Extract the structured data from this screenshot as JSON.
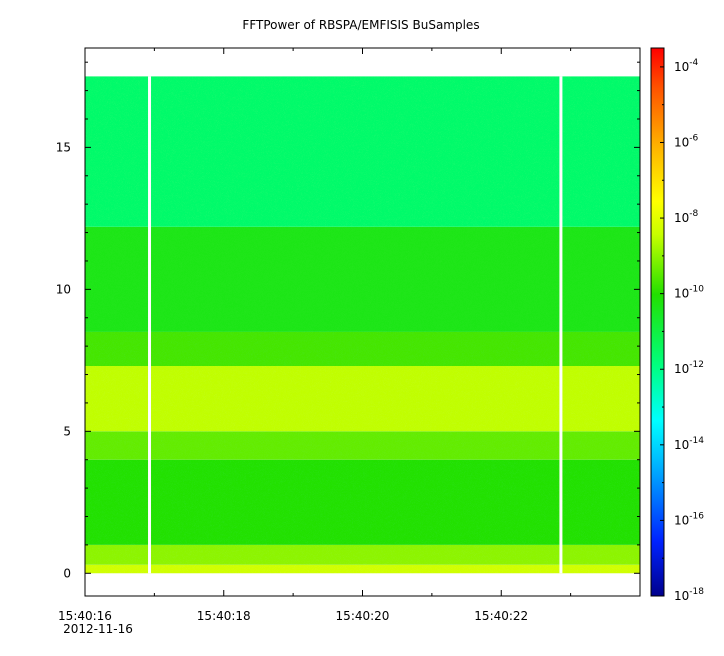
{
  "chart_data": {
    "type": "heatmap",
    "title": "FFTPower of RBSPA/EMFISIS  BuSamples",
    "xlabel": "",
    "ylabel": "",
    "x_axis": {
      "date": "2012-11-16",
      "range_seconds": [
        "15:40:16",
        "15:40:24"
      ],
      "tick_labels": [
        "15:40:16",
        "15:40:18",
        "15:40:20",
        "15:40:22"
      ],
      "tick_values": [
        "15:40:16",
        "15:40:18",
        "15:40:20",
        "15:40:22"
      ]
    },
    "y_axis": {
      "range": [
        -0.8,
        18.5
      ],
      "tick_labels": [
        "0",
        "5",
        "10",
        "15"
      ],
      "tick_values": [
        0,
        5,
        10,
        15
      ]
    },
    "colorbar": {
      "scale": "log",
      "range_exponent": [
        -18,
        -3.5
      ],
      "tick_base": "10",
      "tick_exponents": [
        "-18",
        "-16",
        "-14",
        "-12",
        "-10",
        "-8",
        "-6",
        "-4"
      ],
      "colormap": "rainbow"
    },
    "data_extent": {
      "time_start": "15:40:16",
      "time_end": "15:40:24",
      "freq_min": 0,
      "freq_max": 17.5
    },
    "gaps": [
      {
        "time": "15:40:16.93"
      },
      {
        "time": "15:40:22.86"
      }
    ],
    "bands": [
      {
        "freq_from": 0,
        "freq_to": 0.3,
        "log10_power": -8.3
      },
      {
        "freq_from": 0.3,
        "freq_to": 1.0,
        "log10_power": -9.0
      },
      {
        "freq_from": 1.0,
        "freq_to": 4.0,
        "log10_power": -10.1
      },
      {
        "freq_from": 4.0,
        "freq_to": 5.0,
        "log10_power": -9.4
      },
      {
        "freq_from": 5.0,
        "freq_to": 7.3,
        "log10_power": -8.5
      },
      {
        "freq_from": 7.3,
        "freq_to": 8.5,
        "log10_power": -9.7
      },
      {
        "freq_from": 8.5,
        "freq_to": 12.2,
        "log10_power": -10.4
      },
      {
        "freq_from": 12.2,
        "freq_to": 17.5,
        "log10_power": -11.6
      }
    ]
  }
}
